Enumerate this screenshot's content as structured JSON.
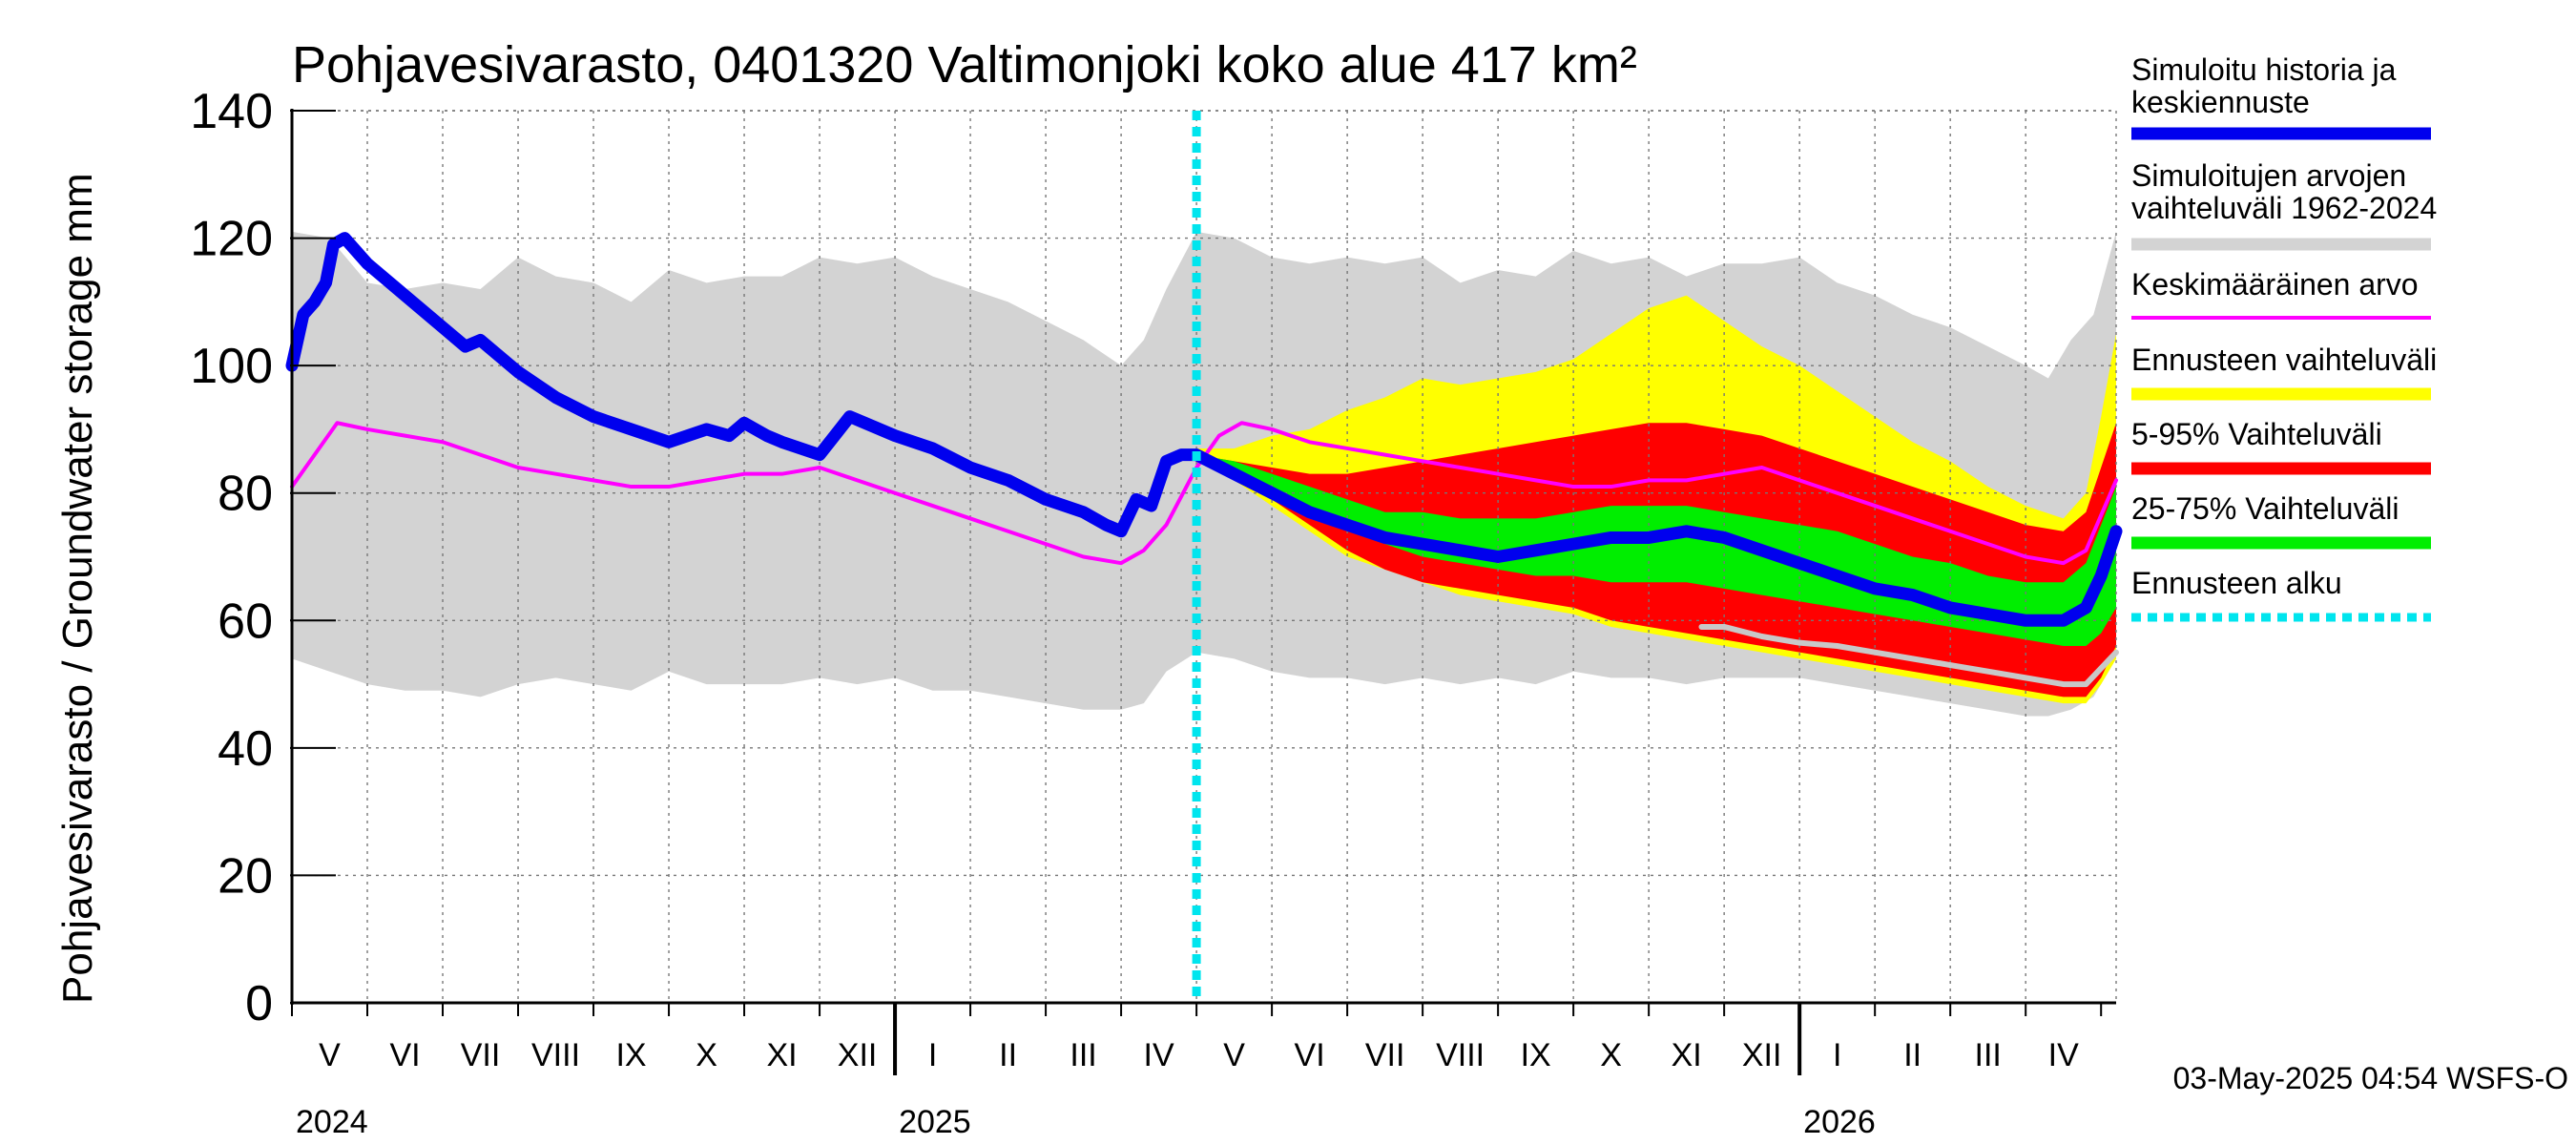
{
  "chart_data": {
    "type": "area",
    "title": "Pohjavesivarasto, 0401320 Valtimonjoki koko alue 417 km²",
    "ylabel": "Pohjavesivarasto / Groundwater storage   mm",
    "ylim": [
      0,
      140
    ],
    "yticks": [
      "0",
      "20",
      "40",
      "60",
      "80",
      "100",
      "120",
      "140"
    ],
    "x_range_months": [
      0,
      24.2
    ],
    "forecast_start_month": 12.0,
    "month_labels": [
      {
        "label": "V",
        "pos": 0.5
      },
      {
        "label": "VI",
        "pos": 1.5
      },
      {
        "label": "VII",
        "pos": 2.5
      },
      {
        "label": "VIII",
        "pos": 3.5
      },
      {
        "label": "IX",
        "pos": 4.5
      },
      {
        "label": "X",
        "pos": 5.5
      },
      {
        "label": "XI",
        "pos": 6.5
      },
      {
        "label": "XII",
        "pos": 7.5
      },
      {
        "label": "I",
        "pos": 8.5
      },
      {
        "label": "II",
        "pos": 9.5
      },
      {
        "label": "III",
        "pos": 10.5
      },
      {
        "label": "IV",
        "pos": 11.5
      },
      {
        "label": "V",
        "pos": 12.5
      },
      {
        "label": "VI",
        "pos": 13.5
      },
      {
        "label": "VII",
        "pos": 14.5
      },
      {
        "label": "VIII",
        "pos": 15.5
      },
      {
        "label": "IX",
        "pos": 16.5
      },
      {
        "label": "X",
        "pos": 17.5
      },
      {
        "label": "XI",
        "pos": 18.5
      },
      {
        "label": "XII",
        "pos": 19.5
      },
      {
        "label": "I",
        "pos": 20.5
      },
      {
        "label": "II",
        "pos": 21.5
      },
      {
        "label": "III",
        "pos": 22.5
      },
      {
        "label": "IV",
        "pos": 23.5
      }
    ],
    "year_labels": [
      {
        "label": "2024",
        "pos": 0
      },
      {
        "label": "2025",
        "pos": 8
      },
      {
        "label": "2026",
        "pos": 20
      }
    ],
    "year_boundaries": [
      8,
      20
    ],
    "series": [
      {
        "name": "Simuloitujen arvojen vaihteluväli 1962-2024",
        "kind": "band",
        "color": "#d3d3d3",
        "x": [
          0,
          0.5,
          1,
          1.5,
          2,
          2.5,
          3,
          3.5,
          4,
          4.5,
          5,
          5.5,
          6,
          6.5,
          7,
          7.5,
          8,
          8.5,
          9,
          9.5,
          10,
          10.5,
          11,
          11.3,
          11.6,
          12,
          12.5,
          13,
          13.5,
          14,
          14.5,
          15,
          15.5,
          16,
          16.5,
          17,
          17.5,
          18,
          18.5,
          19,
          19.5,
          20,
          20.5,
          21,
          21.5,
          22,
          22.5,
          23,
          23.3,
          23.6,
          23.9,
          24.2
        ],
        "upper": [
          121,
          120,
          113,
          112,
          113,
          112,
          117,
          114,
          113,
          110,
          115,
          113,
          114,
          114,
          117,
          116,
          117,
          114,
          112,
          110,
          107,
          104,
          100,
          104,
          112,
          121,
          120,
          117,
          116,
          117,
          116,
          117,
          113,
          115,
          114,
          118,
          116,
          117,
          114,
          116,
          116,
          117,
          113,
          111,
          108,
          106,
          103,
          100,
          98,
          104,
          108,
          121
        ],
        "lower": [
          54,
          52,
          50,
          49,
          49,
          48,
          50,
          51,
          50,
          49,
          52,
          50,
          50,
          50,
          51,
          50,
          51,
          49,
          49,
          48,
          47,
          46,
          46,
          47,
          52,
          55,
          54,
          52,
          51,
          51,
          50,
          51,
          50,
          51,
          50,
          52,
          51,
          51,
          50,
          51,
          51,
          51,
          50,
          49,
          48,
          47,
          46,
          45,
          45,
          46,
          48,
          54
        ]
      },
      {
        "name": "Ennusteen vaihteluväli",
        "kind": "band",
        "color": "#ffff00",
        "x": [
          12,
          12.5,
          13,
          13.5,
          14,
          14.5,
          15,
          15.5,
          16,
          16.5,
          17,
          17.5,
          18,
          18.5,
          19,
          19.5,
          20,
          20.5,
          21,
          21.5,
          22,
          22.5,
          23,
          23.5,
          23.8,
          24.0,
          24.2
        ],
        "upper": [
          87,
          87,
          89,
          90,
          93,
          95,
          98,
          97,
          98,
          99,
          101,
          105,
          109,
          111,
          107,
          103,
          100,
          96,
          92,
          88,
          85,
          81,
          78,
          76,
          80,
          92,
          105
        ],
        "lower": [
          86,
          82,
          78,
          74,
          70,
          68,
          66,
          64,
          63,
          62,
          61,
          59,
          58,
          57,
          56,
          55,
          54,
          53,
          52,
          51,
          50,
          49,
          48,
          47,
          47,
          50,
          54
        ]
      },
      {
        "name": "5-95% Vaihteluväli",
        "kind": "band",
        "color": "#ff0000",
        "x": [
          12,
          12.5,
          13,
          13.5,
          14,
          14.5,
          15,
          15.5,
          16,
          16.5,
          17,
          17.5,
          18,
          18.5,
          19,
          19.5,
          20,
          20.5,
          21,
          21.5,
          22,
          22.5,
          23,
          23.5,
          23.8,
          24.0,
          24.2
        ],
        "upper": [
          86,
          85,
          84,
          83,
          83,
          84,
          85,
          86,
          87,
          88,
          89,
          90,
          91,
          91,
          90,
          89,
          87,
          85,
          83,
          81,
          79,
          77,
          75,
          74,
          77,
          84,
          91
        ],
        "lower": [
          86,
          83,
          79,
          75,
          71,
          68,
          66,
          65,
          64,
          63,
          62,
          60,
          59,
          58,
          57,
          56,
          55,
          54,
          53,
          52,
          51,
          50,
          49,
          48,
          48,
          51,
          56
        ]
      },
      {
        "name": "25-75% Vaihteluväli",
        "kind": "band",
        "color": "#00ee00",
        "x": [
          12,
          12.5,
          13,
          13.5,
          14,
          14.5,
          15,
          15.5,
          16,
          16.5,
          17,
          17.5,
          18,
          18.5,
          19,
          19.5,
          20,
          20.5,
          21,
          21.5,
          22,
          22.5,
          23,
          23.5,
          23.8,
          24.0,
          24.2
        ],
        "upper": [
          86,
          85,
          83,
          81,
          79,
          77,
          77,
          76,
          76,
          76,
          77,
          78,
          78,
          78,
          77,
          76,
          75,
          74,
          72,
          70,
          69,
          67,
          66,
          66,
          69,
          75,
          81
        ],
        "lower": [
          86,
          84,
          80,
          77,
          74,
          72,
          70,
          69,
          68,
          67,
          67,
          66,
          66,
          66,
          65,
          64,
          63,
          62,
          61,
          60,
          59,
          58,
          57,
          56,
          56,
          58,
          62
        ]
      },
      {
        "name": "Minimum forecast",
        "kind": "line",
        "color": "#c8c8c8",
        "x": [
          18.7,
          19,
          19.5,
          20,
          20.5,
          21,
          21.5,
          22,
          22.5,
          23,
          23.5,
          23.8,
          24.2
        ],
        "y": [
          59,
          59,
          57.5,
          56.5,
          56,
          55,
          54,
          53,
          52,
          51,
          50,
          50,
          55
        ]
      },
      {
        "name": "Keskimääräinen arvo",
        "kind": "line",
        "color": "#ff00ff",
        "x": [
          0,
          0.3,
          0.6,
          1,
          1.5,
          2,
          2.5,
          3,
          3.5,
          4,
          4.5,
          5,
          5.5,
          6,
          6.5,
          7,
          7.5,
          8,
          8.5,
          9,
          9.5,
          10,
          10.5,
          11,
          11.3,
          11.6,
          12,
          12.3,
          12.6,
          13,
          13.5,
          14,
          14.5,
          15,
          15.5,
          16,
          16.5,
          17,
          17.5,
          18,
          18.5,
          19,
          19.5,
          20,
          20.5,
          21,
          21.5,
          22,
          22.5,
          23,
          23.5,
          23.8,
          24.2
        ],
        "y": [
          81,
          86,
          91,
          90,
          89,
          88,
          86,
          84,
          83,
          82,
          81,
          81,
          82,
          83,
          83,
          84,
          82,
          80,
          78,
          76,
          74,
          72,
          70,
          69,
          71,
          75,
          84,
          89,
          91,
          90,
          88,
          87,
          86,
          85,
          84,
          83,
          82,
          81,
          81,
          82,
          82,
          83,
          84,
          82,
          80,
          78,
          76,
          74,
          72,
          70,
          69,
          71,
          82
        ]
      },
      {
        "name": "Simuloitu historia ja keskiennuste",
        "kind": "line",
        "color": "#0000ee",
        "x": [
          0,
          0.15,
          0.3,
          0.45,
          0.55,
          0.7,
          1,
          1.5,
          2,
          2.3,
          2.5,
          2.7,
          3,
          3.5,
          4,
          4.5,
          5,
          5.5,
          5.8,
          6,
          6.3,
          6.5,
          7,
          7.2,
          7.4,
          7.6,
          8,
          8.5,
          9,
          9.5,
          10,
          10.5,
          10.8,
          11,
          11.2,
          11.4,
          11.6,
          11.8,
          12,
          12.5,
          13,
          13.5,
          14,
          14.5,
          15,
          15.5,
          16,
          16.5,
          17,
          17.5,
          18,
          18.5,
          19,
          19.5,
          20,
          20.5,
          21,
          21.5,
          22,
          22.5,
          23,
          23.5,
          23.8,
          24.0,
          24.2
        ],
        "y": [
          100,
          108,
          110,
          113,
          119,
          120,
          116,
          111,
          106,
          103,
          104,
          102,
          99,
          95,
          92,
          90,
          88,
          90,
          89,
          91,
          89,
          88,
          86,
          89,
          92,
          91,
          89,
          87,
          84,
          82,
          79,
          77,
          75,
          74,
          79,
          78,
          85,
          86,
          86,
          83,
          80,
          77,
          75,
          73,
          72,
          71,
          70,
          71,
          72,
          73,
          73,
          74,
          73,
          71,
          69,
          67,
          65,
          64,
          62,
          61,
          60,
          60,
          62,
          67,
          74
        ]
      }
    ],
    "legend": [
      {
        "label": "Simuloitu historia ja keskiennuste",
        "lines": [
          "Simuloitu historia ja",
          "keskiennuste"
        ],
        "color": "#0000ee",
        "style": "solid"
      },
      {
        "label": "Simuloitujen arvojen vaihteluväli 1962-2024",
        "lines": [
          "Simuloitujen arvojen",
          "vaihteluväli 1962-2024"
        ],
        "color": "#d3d3d3",
        "style": "solid"
      },
      {
        "label": "Keskimääräinen arvo",
        "lines": [
          "Keskimääräinen arvo"
        ],
        "color": "#ff00ff",
        "style": "thin"
      },
      {
        "label": "Ennusteen vaihteluväli",
        "lines": [
          "Ennusteen vaihteluväli"
        ],
        "color": "#ffff00",
        "style": "solid"
      },
      {
        "label": "5-95% Vaihteluväli",
        "lines": [
          "5-95% Vaihteluväli"
        ],
        "color": "#ff0000",
        "style": "solid"
      },
      {
        "label": "25-75% Vaihteluväli",
        "lines": [
          "25-75% Vaihteluväli"
        ],
        "color": "#00ee00",
        "style": "solid"
      },
      {
        "label": "Ennusteen alku",
        "lines": [
          "Ennusteen alku"
        ],
        "color": "#00e5ee",
        "style": "dotted"
      }
    ],
    "forecast_marker_color": "#00e5ee",
    "grid": true,
    "footer": "03-May-2025 04:54 WSFS-O"
  }
}
